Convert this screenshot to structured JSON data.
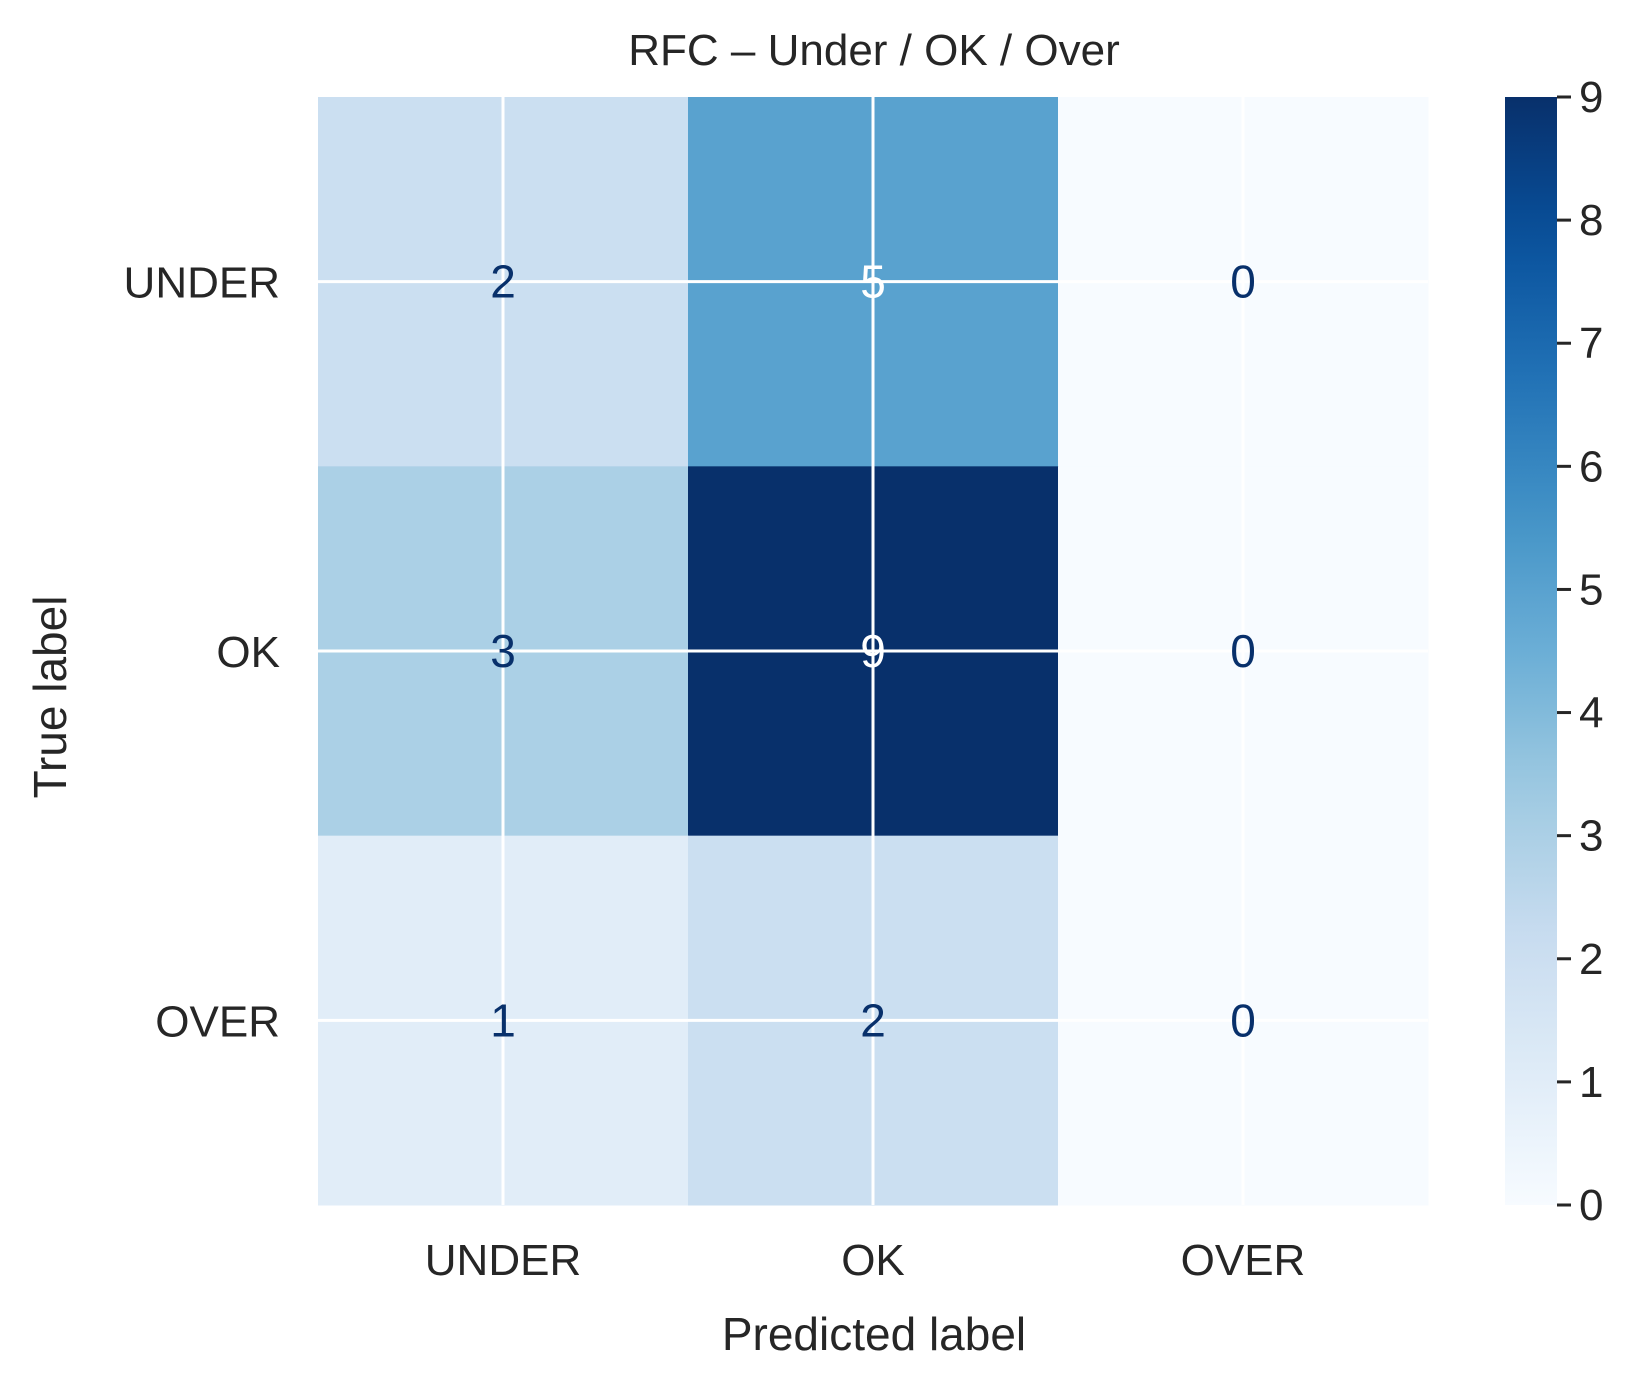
{
  "chart_data": {
    "type": "heatmap",
    "title": "RFC – Under / OK / Over",
    "xlabel": "Predicted label",
    "ylabel": "True label",
    "x_categories": [
      "UNDER",
      "OK",
      "OVER"
    ],
    "y_categories": [
      "UNDER",
      "OK",
      "OVER"
    ],
    "matrix": [
      [
        2,
        5,
        0
      ],
      [
        3,
        9,
        0
      ],
      [
        1,
        2,
        0
      ]
    ],
    "colormap": "Blues",
    "vmin": 0,
    "vmax": 9,
    "colorbar_ticks": [
      "0",
      "1",
      "2",
      "3",
      "4",
      "5",
      "6",
      "7",
      "8",
      "9"
    ],
    "grid": true,
    "colors": {
      "grid": "#ffffff",
      "text_dark": "#08306b",
      "text_light": "#ffffff",
      "label_text": "#262626"
    }
  }
}
